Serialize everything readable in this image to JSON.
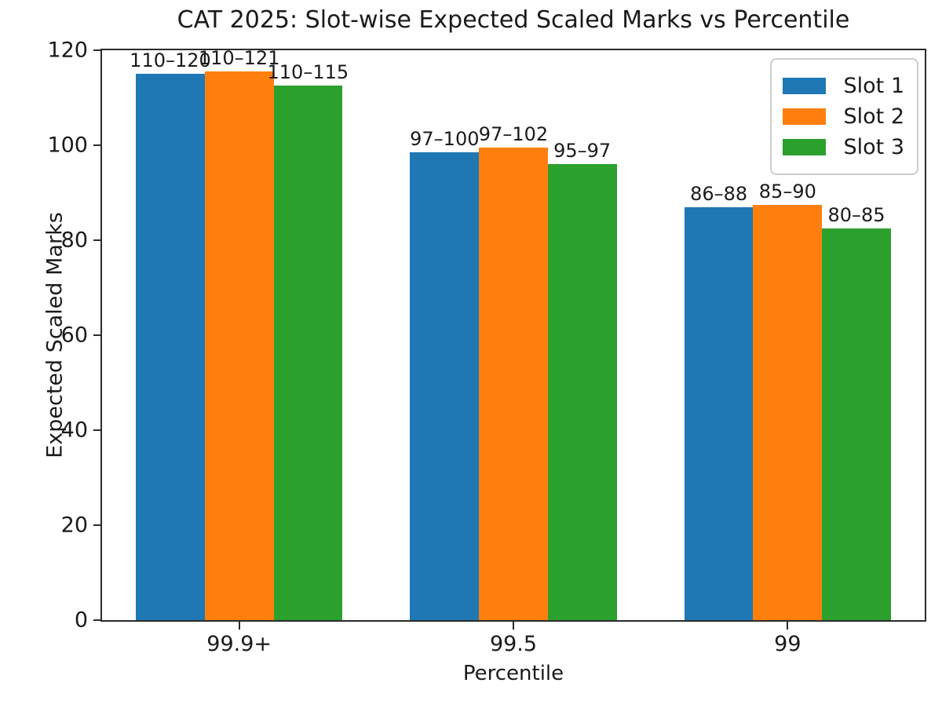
{
  "chart_data": {
    "type": "bar",
    "title": "CAT 2025: Slot-wise Expected Scaled Marks vs Percentile",
    "xlabel": "Percentile",
    "ylabel": "Expected Scaled Marks",
    "categories": [
      "99.9+",
      "99.5",
      "99"
    ],
    "series": [
      {
        "name": "Slot 1",
        "color": "#1f77b4",
        "values": [
          115,
          98.5,
          87
        ],
        "bar_labels": [
          "110–120",
          "97–100",
          "86–88"
        ]
      },
      {
        "name": "Slot 2",
        "color": "#ff7f0e",
        "values": [
          115.5,
          99.5,
          87.5
        ],
        "bar_labels": [
          "110–121",
          "97–102",
          "85–90"
        ]
      },
      {
        "name": "Slot 3",
        "color": "#2ca02c",
        "values": [
          112.5,
          96,
          82.5
        ],
        "bar_labels": [
          "110–115",
          "95–97",
          "80–85"
        ]
      }
    ],
    "ylim": [
      0,
      120
    ],
    "yticks": [
      0,
      20,
      40,
      60,
      80,
      100,
      120
    ],
    "legend_position": "upper right",
    "grid": false
  }
}
